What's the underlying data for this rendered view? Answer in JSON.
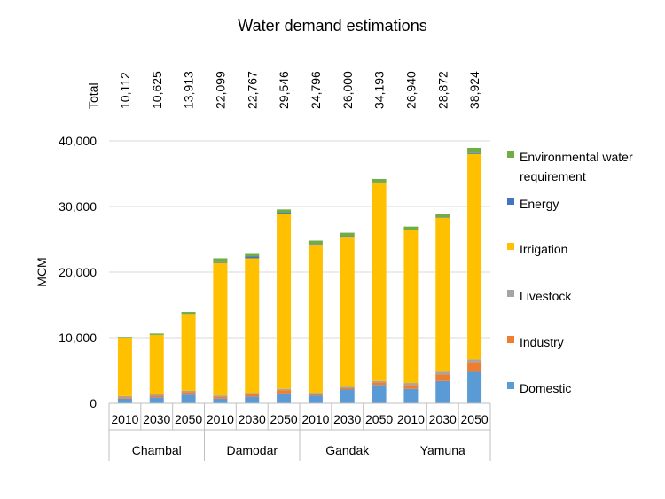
{
  "chart_data": {
    "type": "bar",
    "stacked": true,
    "title": "Water demand estimations",
    "ylabel": "MCM",
    "ylim": [
      0,
      40000
    ],
    "yticks": [
      0,
      10000,
      20000,
      30000,
      40000
    ],
    "ytick_labels": [
      "0",
      "10,000",
      "20,000",
      "30,000",
      "40,000"
    ],
    "totals_label": "Total",
    "groups": [
      "Chambal",
      "Damodar",
      "Gandak",
      "Yamuna"
    ],
    "categories": [
      "2010",
      "2030",
      "2050",
      "2010",
      "2030",
      "2050",
      "2010",
      "2030",
      "2050",
      "2010",
      "2030",
      "2050"
    ],
    "totals": [
      10112,
      10625,
      13913,
      22099,
      22767,
      29546,
      24796,
      26000,
      34193,
      26940,
      28872,
      38924
    ],
    "totals_labels": [
      "10,112",
      "10,625",
      "13,913",
      "22,099",
      "22,767",
      "29,546",
      "24,796",
      "26,000",
      "34,193",
      "26,940",
      "28,872",
      "38,924"
    ],
    "series": [
      {
        "name": "Domestic",
        "color": "#5B9BD5",
        "values": [
          700,
          900,
          1300,
          700,
          1000,
          1500,
          1200,
          2100,
          2800,
          2200,
          3400,
          4800
        ]
      },
      {
        "name": "Industry",
        "color": "#ED7D31",
        "values": [
          200,
          300,
          400,
          300,
          400,
          500,
          200,
          200,
          400,
          600,
          1000,
          1500
        ]
      },
      {
        "name": "Livestock",
        "color": "#A5A5A5",
        "values": [
          200,
          200,
          200,
          200,
          200,
          200,
          200,
          200,
          200,
          300,
          400,
          400
        ]
      },
      {
        "name": "Irrigation",
        "color": "#FFC000",
        "values": [
          8900,
          9000,
          11700,
          20200,
          20500,
          26700,
          22600,
          22900,
          30200,
          23300,
          23500,
          31300
        ]
      },
      {
        "name": "Energy",
        "color": "#4472C4",
        "values": [
          12,
          25,
          13,
          99,
          267,
          146,
          96,
          100,
          93,
          40,
          72,
          124
        ]
      },
      {
        "name": "Environmental water requirement",
        "color": "#70AD47",
        "values": [
          100,
          200,
          300,
          600,
          400,
          500,
          500,
          500,
          500,
          500,
          500,
          800
        ]
      }
    ],
    "legend_position": "right",
    "legend_order": [
      "Environmental water requirement",
      "Energy",
      "Irrigation",
      "Livestock",
      "Industry",
      "Domestic"
    ]
  }
}
